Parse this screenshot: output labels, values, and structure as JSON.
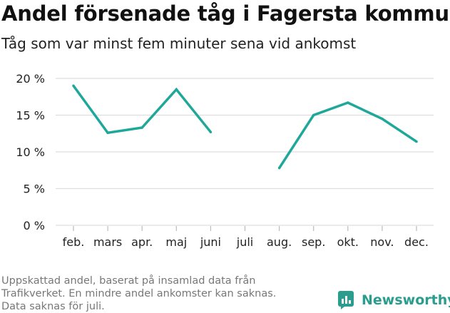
{
  "header": {
    "title": "Andel försenade tåg i Fagersta kommun",
    "subtitle": "Tåg som var minst fem minuter sena vid ankomst"
  },
  "footer": {
    "note_lines": [
      "Uppskattad andel, baserat på insamlad data från",
      "Trafikverket. En mindre andel ankomster kan saknas.",
      "Data saknas för juli."
    ],
    "brand": "Newsworthy"
  },
  "colors": {
    "line": "#1fa89a",
    "grid": "#dddddd",
    "brand": "#2a9d8f"
  },
  "chart_data": {
    "type": "line",
    "title": "Andel försenade tåg i Fagersta kommun",
    "subtitle": "Tåg som var minst fem minuter sena vid ankomst",
    "categories": [
      "feb.",
      "mars",
      "apr.",
      "maj",
      "juni",
      "juli",
      "aug.",
      "sep.",
      "okt.",
      "nov.",
      "dec."
    ],
    "series": [
      {
        "values": [
          19.0,
          12.6,
          13.3,
          18.5,
          12.7,
          null,
          7.8,
          15.0,
          16.7,
          14.5,
          11.4
        ]
      }
    ],
    "ylim": [
      0,
      20
    ],
    "yticks": [
      0,
      5,
      10,
      15,
      20
    ],
    "ytick_labels": [
      "0 %",
      "5 %",
      "10 %",
      "15 %",
      "20 %"
    ],
    "grid": true,
    "xlabel": "",
    "ylabel": ""
  }
}
